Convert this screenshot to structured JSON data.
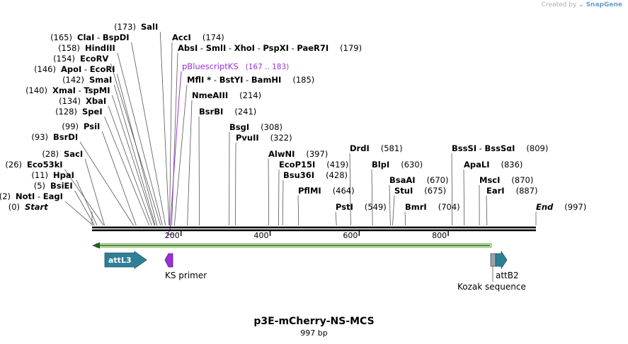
{
  "credit": {
    "prefix": "Created by",
    "brand": "SnapGene"
  },
  "map": {
    "name": "p3E-mCherry-NS-MCS",
    "length_label": "997 bp",
    "length": 997,
    "ticks": [
      200,
      400,
      600,
      800
    ],
    "sites": [
      {
        "parts": [
          "Start"
        ],
        "pos": "(0)",
        "bp": 0,
        "italic": true,
        "pos_left": true
      },
      {
        "parts": [
          "NotI",
          "EagI"
        ],
        "pos": "(2)",
        "bp": 2,
        "pos_left": true
      },
      {
        "parts": [
          "BsiEI"
        ],
        "pos": "(5)",
        "bp": 5,
        "pos_left": true
      },
      {
        "parts": [
          "HpaI"
        ],
        "pos": "(11)",
        "bp": 11,
        "pos_left": true
      },
      {
        "parts": [
          "Eco53kI"
        ],
        "pos": "(26)",
        "bp": 26,
        "pos_left": true
      },
      {
        "parts": [
          "SacI"
        ],
        "pos": "(28)",
        "bp": 28,
        "pos_left": true
      },
      {
        "parts": [
          "BsrDI"
        ],
        "pos": "(93)",
        "bp": 93,
        "pos_left": true
      },
      {
        "parts": [
          "PsiI"
        ],
        "pos": "(99)",
        "bp": 99,
        "pos_left": true
      },
      {
        "parts": [
          "SpeI"
        ],
        "pos": "(128)",
        "bp": 128,
        "pos_left": true
      },
      {
        "parts": [
          "XbaI"
        ],
        "pos": "(134)",
        "bp": 134,
        "pos_left": true
      },
      {
        "parts": [
          "XmaI",
          "TspMI"
        ],
        "pos": "(140)",
        "bp": 140,
        "pos_left": true
      },
      {
        "parts": [
          "SmaI"
        ],
        "pos": "(142)",
        "bp": 142,
        "pos_left": true
      },
      {
        "parts": [
          "ApoI",
          "EcoRI"
        ],
        "pos": "(146)",
        "bp": 146,
        "pos_left": true
      },
      {
        "parts": [
          "EcoRV"
        ],
        "pos": "(154)",
        "bp": 154,
        "pos_left": true
      },
      {
        "parts": [
          "HindIII"
        ],
        "pos": "(158)",
        "bp": 158,
        "pos_left": true
      },
      {
        "parts": [
          "ClaI",
          "BspDI"
        ],
        "pos": "(165)",
        "bp": 165,
        "pos_left": true
      },
      {
        "parts": [
          "SalI"
        ],
        "pos": "(173)",
        "bp": 173,
        "pos_left": true
      },
      {
        "parts": [
          "AccI"
        ],
        "pos": "(174)",
        "bp": 174
      },
      {
        "parts": [
          "AbsI",
          "SmlI",
          "XhoI",
          "PspXI",
          "PaeR7I"
        ],
        "pos": "(179)",
        "bp": 179
      },
      {
        "parts": [
          "MflI *",
          "BstYI",
          "BamHI"
        ],
        "pos": "(185)",
        "bp": 185
      },
      {
        "parts": [
          "NmeAIII"
        ],
        "pos": "(214)",
        "bp": 214
      },
      {
        "parts": [
          "BsrBI"
        ],
        "pos": "(241)",
        "bp": 241
      },
      {
        "parts": [
          "BsgI"
        ],
        "pos": "(308)",
        "bp": 308
      },
      {
        "parts": [
          "PvuII"
        ],
        "pos": "(322)",
        "bp": 322
      },
      {
        "parts": [
          "AlwNI"
        ],
        "pos": "(397)",
        "bp": 397
      },
      {
        "parts": [
          "EcoP15I"
        ],
        "pos": "(419)",
        "bp": 419
      },
      {
        "parts": [
          "Bsu36I"
        ],
        "pos": "(428)",
        "bp": 428
      },
      {
        "parts": [
          "PflMI"
        ],
        "pos": "(464)",
        "bp": 464
      },
      {
        "parts": [
          "PstI"
        ],
        "pos": "(549)",
        "bp": 549
      },
      {
        "parts": [
          "DrdI"
        ],
        "pos": "(581)",
        "bp": 581
      },
      {
        "parts": [
          "BlpI"
        ],
        "pos": "(630)",
        "bp": 630
      },
      {
        "parts": [
          "BsaAI"
        ],
        "pos": "(670)",
        "bp": 670
      },
      {
        "parts": [
          "StuI"
        ],
        "pos": "(675)",
        "bp": 675
      },
      {
        "parts": [
          "BmrI"
        ],
        "pos": "(704)",
        "bp": 704
      },
      {
        "parts": [
          "BssSI",
          "BssSαI"
        ],
        "pos": "(809)",
        "bp": 809
      },
      {
        "parts": [
          "ApaLI"
        ],
        "pos": "(836)",
        "bp": 836
      },
      {
        "parts": [
          "MscI"
        ],
        "pos": "(870)",
        "bp": 870
      },
      {
        "parts": [
          "EarI"
        ],
        "pos": "(887)",
        "bp": 887
      },
      {
        "parts": [
          "End"
        ],
        "pos": "(997)",
        "bp": 997,
        "italic": true
      }
    ],
    "primer_bind": {
      "name": "pBluescriptKS",
      "range": "(167 .. 183)",
      "color": "#9b30d9"
    },
    "features": [
      {
        "name": "attL3",
        "kind": "arrow",
        "color": "#2f7f96",
        "label_inside": true
      },
      {
        "name": "KS primer",
        "kind": "primer",
        "color": "#9b30d9"
      },
      {
        "name": "attB2",
        "kind": "arrow",
        "color": "#2f7f96"
      },
      {
        "name": "Kozak sequence",
        "kind": "box",
        "color": "#9aa0ad"
      }
    ],
    "orf_color": "#6ab04c"
  }
}
